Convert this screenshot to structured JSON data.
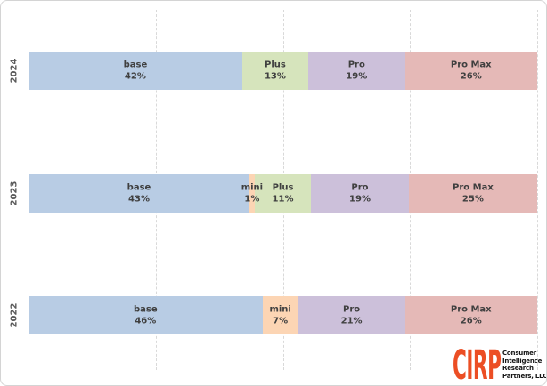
{
  "chart_data": {
    "type": "bar",
    "variant": "horizontal-stacked",
    "title": "",
    "xlabel": "",
    "ylabel": "",
    "categories": [
      "2024",
      "2023",
      "2022"
    ],
    "series": [
      {
        "name": "base",
        "color": "#b8cce4",
        "values": [
          42,
          43,
          46
        ]
      },
      {
        "name": "mini",
        "color": "#fcd5b4",
        "values": [
          0,
          1,
          7
        ]
      },
      {
        "name": "Plus",
        "color": "#d6e4bc",
        "values": [
          13,
          11,
          0
        ]
      },
      {
        "name": "Pro",
        "color": "#ccc0da",
        "values": [
          19,
          19,
          21
        ]
      },
      {
        "name": "Pro Max",
        "color": "#e5b9b7",
        "values": [
          26,
          25,
          26
        ]
      }
    ],
    "value_unit": "%",
    "xlim": [
      0,
      100
    ],
    "gridlines_pct": [
      25,
      50,
      75,
      100
    ],
    "grid_style": "dashed",
    "legend": "none",
    "bar_label_format": "{name} {value}%"
  },
  "logo": {
    "brand": "CIRP",
    "brand_color": "#ec4e24",
    "lines": [
      "Consumer",
      "Intelligence",
      "Research",
      "Partners, LLC"
    ]
  },
  "colors": {
    "frame_border": "#d4d4d4",
    "gridline": "#d9d9d9",
    "segment_label_text": "#3f3f3f",
    "year_label_text": "#595959"
  }
}
